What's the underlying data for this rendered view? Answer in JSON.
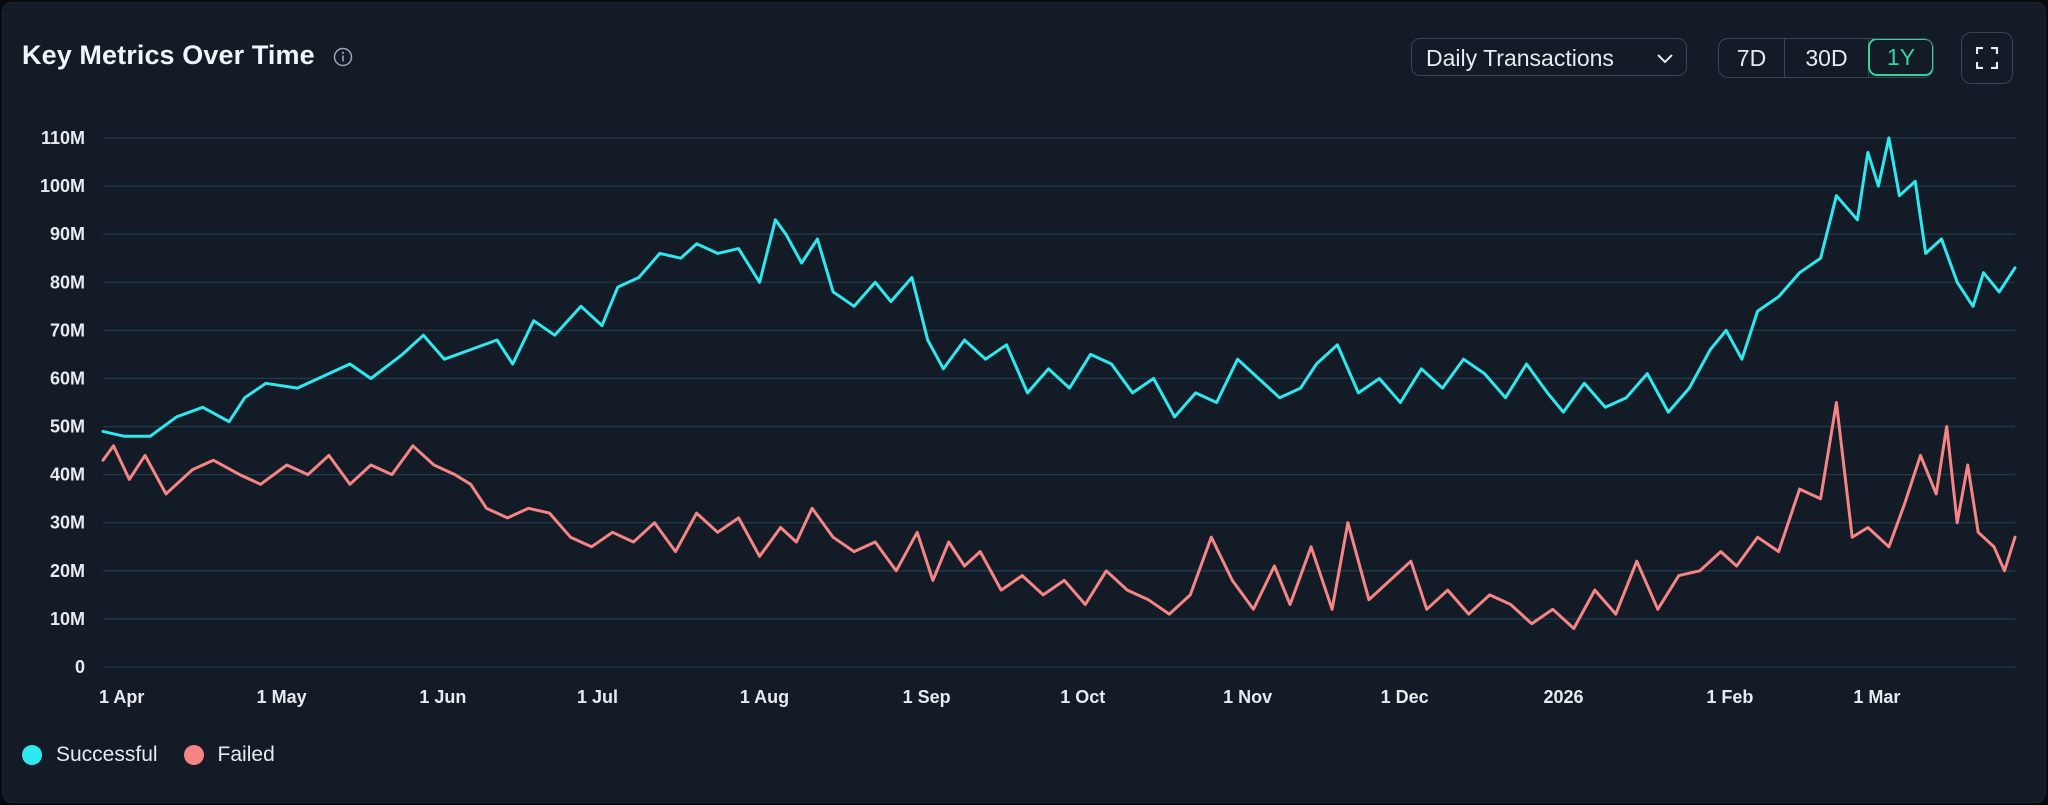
{
  "header": {
    "title": "Key Metrics Over Time",
    "metric_select": "Daily Transactions",
    "ranges": [
      "7D",
      "30D",
      "1Y"
    ],
    "active_range": "1Y"
  },
  "colors": {
    "background": "#121b26",
    "grid": "#1f3a4d",
    "successful": "#2ee8ef",
    "failed": "#f58585",
    "accent": "#36d39b"
  },
  "chart_data": {
    "type": "line",
    "y_tick_labels": [
      "0",
      "10M",
      "20M",
      "30M",
      "40M",
      "50M",
      "60M",
      "70M",
      "80M",
      "90M",
      "100M",
      "110M"
    ],
    "ylim": [
      0,
      110000000
    ],
    "x_tick_labels": [
      "1 Apr",
      "1 May",
      "1 Jun",
      "1 Jul",
      "1 Aug",
      "1 Sep",
      "1 Oct",
      "1 Nov",
      "1 Dec",
      "2026",
      "1 Feb",
      "1 Mar"
    ],
    "x_tick_dates": [
      "2025-04-01",
      "2025-05-01",
      "2025-06-01",
      "2025-07-01",
      "2025-08-01",
      "2025-09-01",
      "2025-10-01",
      "2025-11-01",
      "2025-12-01",
      "2026-01-01",
      "2026-02-01",
      "2026-03-01"
    ],
    "xlim": [
      "2025-04-01",
      "2026-03-31"
    ],
    "grid": "horizontal",
    "legend_position": "bottom-left",
    "series": [
      {
        "name": "Successful",
        "points": [
          [
            "2025-04-01",
            49
          ],
          [
            "2025-04-05",
            48
          ],
          [
            "2025-04-10",
            48
          ],
          [
            "2025-04-15",
            52
          ],
          [
            "2025-04-20",
            54
          ],
          [
            "2025-04-25",
            51
          ],
          [
            "2025-04-28",
            56
          ],
          [
            "2025-05-02",
            59
          ],
          [
            "2025-05-08",
            58
          ],
          [
            "2025-05-14",
            61
          ],
          [
            "2025-05-18",
            63
          ],
          [
            "2025-05-22",
            60
          ],
          [
            "2025-05-28",
            65
          ],
          [
            "2025-06-01",
            69
          ],
          [
            "2025-06-05",
            64
          ],
          [
            "2025-06-10",
            66
          ],
          [
            "2025-06-15",
            68
          ],
          [
            "2025-06-18",
            63
          ],
          [
            "2025-06-22",
            72
          ],
          [
            "2025-06-26",
            69
          ],
          [
            "2025-07-01",
            75
          ],
          [
            "2025-07-05",
            71
          ],
          [
            "2025-07-08",
            79
          ],
          [
            "2025-07-12",
            81
          ],
          [
            "2025-07-16",
            86
          ],
          [
            "2025-07-20",
            85
          ],
          [
            "2025-07-23",
            88
          ],
          [
            "2025-07-27",
            86
          ],
          [
            "2025-07-31",
            87
          ],
          [
            "2025-08-04",
            80
          ],
          [
            "2025-08-07",
            93
          ],
          [
            "2025-08-09",
            90
          ],
          [
            "2025-08-12",
            84
          ],
          [
            "2025-08-15",
            89
          ],
          [
            "2025-08-18",
            78
          ],
          [
            "2025-08-22",
            75
          ],
          [
            "2025-08-26",
            80
          ],
          [
            "2025-08-29",
            76
          ],
          [
            "2025-09-02",
            81
          ],
          [
            "2025-09-05",
            68
          ],
          [
            "2025-09-08",
            62
          ],
          [
            "2025-09-12",
            68
          ],
          [
            "2025-09-16",
            64
          ],
          [
            "2025-09-20",
            67
          ],
          [
            "2025-09-24",
            57
          ],
          [
            "2025-09-28",
            62
          ],
          [
            "2025-10-02",
            58
          ],
          [
            "2025-10-06",
            65
          ],
          [
            "2025-10-10",
            63
          ],
          [
            "2025-10-14",
            57
          ],
          [
            "2025-10-18",
            60
          ],
          [
            "2025-10-22",
            52
          ],
          [
            "2025-10-26",
            57
          ],
          [
            "2025-10-30",
            55
          ],
          [
            "2025-11-03",
            64
          ],
          [
            "2025-11-07",
            60
          ],
          [
            "2025-11-11",
            56
          ],
          [
            "2025-11-15",
            58
          ],
          [
            "2025-11-18",
            63
          ],
          [
            "2025-11-22",
            67
          ],
          [
            "2025-11-26",
            57
          ],
          [
            "2025-11-30",
            60
          ],
          [
            "2025-12-04",
            55
          ],
          [
            "2025-12-08",
            62
          ],
          [
            "2025-12-12",
            58
          ],
          [
            "2025-12-16",
            64
          ],
          [
            "2025-12-20",
            61
          ],
          [
            "2025-12-24",
            56
          ],
          [
            "2025-12-28",
            63
          ],
          [
            "2026-01-01",
            57
          ],
          [
            "2026-01-04",
            53
          ],
          [
            "2026-01-08",
            59
          ],
          [
            "2026-01-12",
            54
          ],
          [
            "2026-01-16",
            56
          ],
          [
            "2026-01-20",
            61
          ],
          [
            "2026-01-24",
            53
          ],
          [
            "2026-01-28",
            58
          ],
          [
            "2026-02-01",
            66
          ],
          [
            "2026-02-04",
            70
          ],
          [
            "2026-02-07",
            64
          ],
          [
            "2026-02-10",
            74
          ],
          [
            "2026-02-14",
            77
          ],
          [
            "2026-02-18",
            82
          ],
          [
            "2026-02-22",
            85
          ],
          [
            "2026-02-25",
            98
          ],
          [
            "2026-03-01",
            93
          ],
          [
            "2026-03-03",
            107
          ],
          [
            "2026-03-05",
            100
          ],
          [
            "2026-03-07",
            110
          ],
          [
            "2026-03-09",
            98
          ],
          [
            "2026-03-12",
            101
          ],
          [
            "2026-03-14",
            86
          ],
          [
            "2026-03-17",
            89
          ],
          [
            "2026-03-20",
            80
          ],
          [
            "2026-03-23",
            75
          ],
          [
            "2026-03-25",
            82
          ],
          [
            "2026-03-28",
            78
          ],
          [
            "2026-03-31",
            83
          ]
        ]
      },
      {
        "name": "Failed",
        "points": [
          [
            "2025-04-01",
            43
          ],
          [
            "2025-04-03",
            46
          ],
          [
            "2025-04-06",
            39
          ],
          [
            "2025-04-09",
            44
          ],
          [
            "2025-04-13",
            36
          ],
          [
            "2025-04-18",
            41
          ],
          [
            "2025-04-22",
            43
          ],
          [
            "2025-04-27",
            40
          ],
          [
            "2025-05-01",
            38
          ],
          [
            "2025-05-06",
            42
          ],
          [
            "2025-05-10",
            40
          ],
          [
            "2025-05-14",
            44
          ],
          [
            "2025-05-18",
            38
          ],
          [
            "2025-05-22",
            42
          ],
          [
            "2025-05-26",
            40
          ],
          [
            "2025-05-30",
            46
          ],
          [
            "2025-06-03",
            42
          ],
          [
            "2025-06-07",
            40
          ],
          [
            "2025-06-10",
            38
          ],
          [
            "2025-06-13",
            33
          ],
          [
            "2025-06-17",
            31
          ],
          [
            "2025-06-21",
            33
          ],
          [
            "2025-06-25",
            32
          ],
          [
            "2025-06-29",
            27
          ],
          [
            "2025-07-03",
            25
          ],
          [
            "2025-07-07",
            28
          ],
          [
            "2025-07-11",
            26
          ],
          [
            "2025-07-15",
            30
          ],
          [
            "2025-07-19",
            24
          ],
          [
            "2025-07-23",
            32
          ],
          [
            "2025-07-27",
            28
          ],
          [
            "2025-07-31",
            31
          ],
          [
            "2025-08-04",
            23
          ],
          [
            "2025-08-08",
            29
          ],
          [
            "2025-08-11",
            26
          ],
          [
            "2025-08-14",
            33
          ],
          [
            "2025-08-18",
            27
          ],
          [
            "2025-08-22",
            24
          ],
          [
            "2025-08-26",
            26
          ],
          [
            "2025-08-30",
            20
          ],
          [
            "2025-09-03",
            28
          ],
          [
            "2025-09-06",
            18
          ],
          [
            "2025-09-09",
            26
          ],
          [
            "2025-09-12",
            21
          ],
          [
            "2025-09-15",
            24
          ],
          [
            "2025-09-19",
            16
          ],
          [
            "2025-09-23",
            19
          ],
          [
            "2025-09-27",
            15
          ],
          [
            "2025-10-01",
            18
          ],
          [
            "2025-10-05",
            13
          ],
          [
            "2025-10-09",
            20
          ],
          [
            "2025-10-13",
            16
          ],
          [
            "2025-10-17",
            14
          ],
          [
            "2025-10-21",
            11
          ],
          [
            "2025-10-25",
            15
          ],
          [
            "2025-10-29",
            27
          ],
          [
            "2025-11-02",
            18
          ],
          [
            "2025-11-06",
            12
          ],
          [
            "2025-11-10",
            21
          ],
          [
            "2025-11-13",
            13
          ],
          [
            "2025-11-17",
            25
          ],
          [
            "2025-11-21",
            12
          ],
          [
            "2025-11-24",
            30
          ],
          [
            "2025-11-28",
            14
          ],
          [
            "2025-12-02",
            18
          ],
          [
            "2025-12-06",
            22
          ],
          [
            "2025-12-09",
            12
          ],
          [
            "2025-12-13",
            16
          ],
          [
            "2025-12-17",
            11
          ],
          [
            "2025-12-21",
            15
          ],
          [
            "2025-12-25",
            13
          ],
          [
            "2025-12-29",
            9
          ],
          [
            "2026-01-02",
            12
          ],
          [
            "2026-01-06",
            8
          ],
          [
            "2026-01-10",
            16
          ],
          [
            "2026-01-14",
            11
          ],
          [
            "2026-01-18",
            22
          ],
          [
            "2026-01-22",
            12
          ],
          [
            "2026-01-26",
            19
          ],
          [
            "2026-01-30",
            20
          ],
          [
            "2026-02-03",
            24
          ],
          [
            "2026-02-06",
            21
          ],
          [
            "2026-02-10",
            27
          ],
          [
            "2026-02-14",
            24
          ],
          [
            "2026-02-18",
            37
          ],
          [
            "2026-02-22",
            35
          ],
          [
            "2026-02-25",
            55
          ],
          [
            "2026-02-28",
            27
          ],
          [
            "2026-03-03",
            29
          ],
          [
            "2026-03-07",
            25
          ],
          [
            "2026-03-10",
            34
          ],
          [
            "2026-03-13",
            44
          ],
          [
            "2026-03-16",
            36
          ],
          [
            "2026-03-18",
            50
          ],
          [
            "2026-03-20",
            30
          ],
          [
            "2026-03-22",
            42
          ],
          [
            "2026-03-24",
            28
          ],
          [
            "2026-03-27",
            25
          ],
          [
            "2026-03-29",
            20
          ],
          [
            "2026-03-31",
            27
          ]
        ]
      }
    ]
  }
}
